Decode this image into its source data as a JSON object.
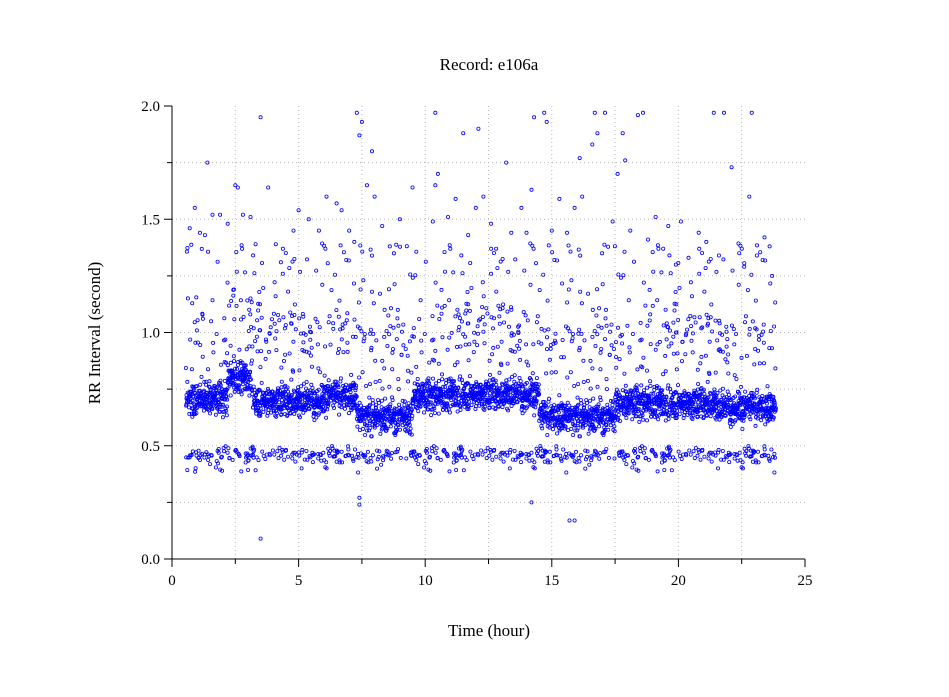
{
  "chart_data": {
    "type": "scatter",
    "title": "Record:  e106a",
    "xlabel": "Time (hour)",
    "ylabel": "RR Interval (second)",
    "xlim": [
      0,
      25
    ],
    "ylim": [
      0,
      2
    ],
    "xticks": [
      0,
      5,
      10,
      15,
      20,
      25
    ],
    "xtick_labels": [
      "0",
      "5",
      "10",
      "15",
      "20",
      "25"
    ],
    "yticks": [
      0,
      0.5,
      1,
      1.5,
      2
    ],
    "ytick_labels": [
      "0.0",
      "0.5",
      "1.0",
      "1.5",
      "2.0"
    ],
    "grid": true,
    "marker_color": "#0000ff",
    "marker": "hollow circle",
    "series": [
      {
        "name": "",
        "points": [
          [
            0.7,
            1.46
          ],
          [
            0.9,
            1.55
          ],
          [
            1.1,
            1.44
          ],
          [
            1.3,
            1.43
          ],
          [
            1.4,
            1.75
          ],
          [
            1.6,
            1.52
          ],
          [
            1.9,
            1.52
          ],
          [
            2.2,
            1.48
          ],
          [
            2.5,
            1.65
          ],
          [
            2.6,
            1.64
          ],
          [
            2.8,
            1.52
          ],
          [
            3.1,
            1.51
          ],
          [
            3.3,
            1.39
          ],
          [
            3.5,
            1.95
          ],
          [
            3.8,
            1.64
          ],
          [
            4.1,
            1.39
          ],
          [
            4.3,
            1.31
          ],
          [
            4.8,
            1.45
          ],
          [
            5.0,
            1.54
          ],
          [
            5.4,
            1.5
          ],
          [
            5.8,
            1.45
          ],
          [
            6.1,
            1.6
          ],
          [
            6.5,
            1.57
          ],
          [
            6.7,
            1.54
          ],
          [
            7.0,
            1.45
          ],
          [
            7.2,
            1.4
          ],
          [
            7.3,
            1.97
          ],
          [
            7.4,
            1.87
          ],
          [
            7.5,
            1.93
          ],
          [
            7.7,
            1.65
          ],
          [
            7.9,
            1.8
          ],
          [
            8.0,
            1.6
          ],
          [
            8.3,
            1.47
          ],
          [
            8.6,
            1.38
          ],
          [
            9.0,
            1.5
          ],
          [
            9.5,
            1.64
          ],
          [
            10.3,
            1.49
          ],
          [
            10.4,
            1.65
          ],
          [
            10.4,
            1.97
          ],
          [
            10.5,
            1.7
          ],
          [
            10.9,
            1.51
          ],
          [
            11.2,
            1.59
          ],
          [
            11.5,
            1.88
          ],
          [
            11.7,
            1.43
          ],
          [
            12.0,
            1.55
          ],
          [
            12.1,
            1.9
          ],
          [
            12.3,
            1.6
          ],
          [
            12.6,
            1.48
          ],
          [
            12.8,
            1.37
          ],
          [
            13.2,
            1.75
          ],
          [
            13.4,
            1.44
          ],
          [
            13.8,
            1.55
          ],
          [
            14.0,
            1.44
          ],
          [
            14.2,
            1.63
          ],
          [
            14.3,
            1.95
          ],
          [
            14.7,
            1.97
          ],
          [
            14.8,
            1.93
          ],
          [
            15.0,
            1.45
          ],
          [
            15.3,
            1.59
          ],
          [
            15.6,
            1.44
          ],
          [
            15.9,
            1.55
          ],
          [
            16.1,
            1.77
          ],
          [
            16.2,
            1.6
          ],
          [
            16.6,
            1.83
          ],
          [
            16.7,
            1.97
          ],
          [
            16.8,
            1.88
          ],
          [
            17.1,
            1.97
          ],
          [
            17.4,
            1.49
          ],
          [
            17.6,
            1.7
          ],
          [
            17.8,
            1.88
          ],
          [
            17.9,
            1.76
          ],
          [
            18.1,
            1.45
          ],
          [
            18.4,
            1.96
          ],
          [
            18.6,
            1.97
          ],
          [
            18.8,
            1.41
          ],
          [
            19.1,
            1.51
          ],
          [
            19.4,
            1.37
          ],
          [
            19.6,
            1.47
          ],
          [
            19.9,
            1.3
          ],
          [
            20.1,
            1.49
          ],
          [
            20.4,
            1.33
          ],
          [
            20.8,
            1.44
          ],
          [
            21.1,
            1.4
          ],
          [
            21.4,
            1.97
          ],
          [
            21.6,
            1.34
          ],
          [
            21.8,
            1.97
          ],
          [
            22.1,
            1.73
          ],
          [
            22.4,
            1.35
          ],
          [
            22.6,
            1.29
          ],
          [
            22.8,
            1.6
          ],
          [
            22.9,
            1.97
          ],
          [
            23.1,
            1.34
          ],
          [
            23.4,
            1.42
          ],
          [
            23.6,
            1.38
          ],
          [
            23.7,
            1.25
          ],
          [
            3.5,
            0.09
          ],
          [
            7.4,
            0.27
          ],
          [
            7.4,
            0.24
          ],
          [
            14.2,
            0.25
          ],
          [
            15.7,
            0.17
          ],
          [
            15.9,
            0.17
          ]
        ]
      }
    ]
  }
}
